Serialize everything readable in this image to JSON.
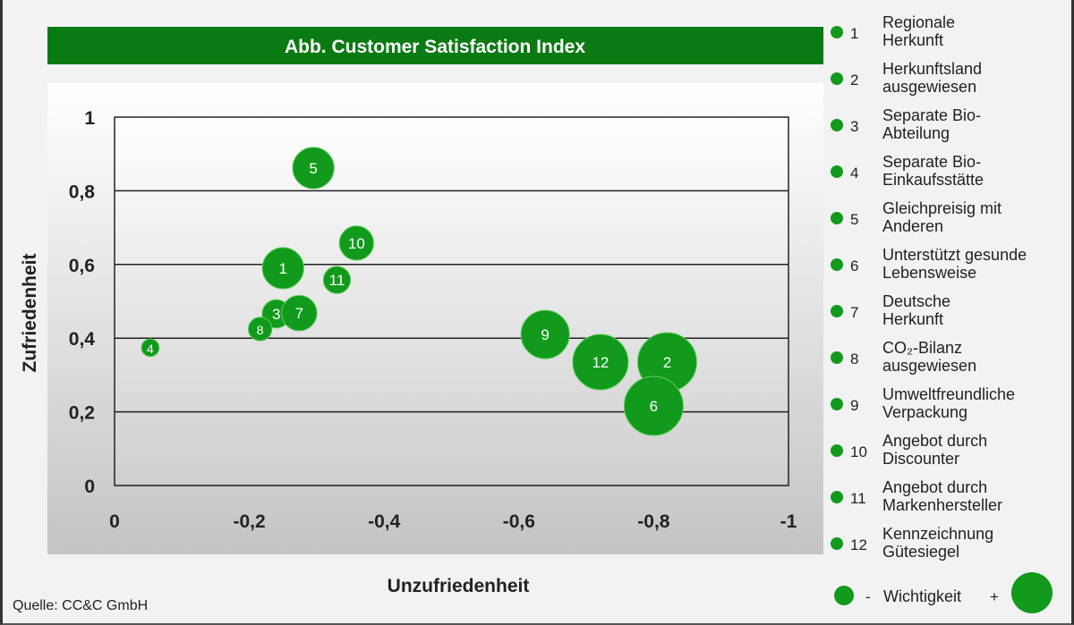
{
  "colors": {
    "accent": "#0b8a16",
    "title_bar": "#0a7a12",
    "bubble": "#129a1c"
  },
  "source": "Quelle: CC&C GmbH",
  "legend": {
    "items": [
      {
        "n": "1",
        "line1": "Regionale",
        "line2": "Herkunft"
      },
      {
        "n": "2",
        "line1": "Herkunftsland",
        "line2": "ausgewiesen"
      },
      {
        "n": "3",
        "line1": "Separate Bio-",
        "line2": "Abteilung"
      },
      {
        "n": "4",
        "line1": "Separate Bio-",
        "line2": "Einkaufsstätte"
      },
      {
        "n": "5",
        "line1": "Gleichpreisig mit",
        "line2": "Anderen"
      },
      {
        "n": "6",
        "line1": "Unterstützt gesunde",
        "line2": "Lebensweise"
      },
      {
        "n": "7",
        "line1": "Deutsche",
        "line2": "Herkunft"
      },
      {
        "n": "8",
        "line1": "CO₂-Bilanz",
        "line2": "ausgewiesen"
      },
      {
        "n": "9",
        "line1": "Umweltfreundliche",
        "line2": "Verpackung"
      },
      {
        "n": "10",
        "line1": "Angebot durch",
        "line2": "Discounter"
      },
      {
        "n": "11",
        "line1": "Angebot durch",
        "line2": "Markenhersteller"
      },
      {
        "n": "12",
        "line1": "Kennzeichnung",
        "line2": "Gütesiegel"
      }
    ],
    "size_legend": {
      "minus": "-",
      "label": "Wichtigkeit",
      "plus": "+"
    }
  },
  "chart_data": {
    "type": "bubble",
    "title": "Abb. Customer Satisfaction Index",
    "xlabel": "Unzufriedenheit",
    "ylabel": "Zufriedenheit",
    "xlim": [
      0,
      -1
    ],
    "ylim": [
      0,
      1
    ],
    "xticks": [
      "0",
      "-0,2",
      "-0,4",
      "-0,6",
      "-0,8",
      "-1"
    ],
    "yticks": [
      "0",
      "0,2",
      "0,4",
      "0,6",
      "0,8",
      "1"
    ],
    "grid": "horizontal",
    "legend_position": "right",
    "points": [
      {
        "label": "1",
        "x": -0.25,
        "y": 0.59,
        "importance": 0.7
      },
      {
        "label": "2",
        "x": -0.82,
        "y": 0.335,
        "importance": 1.0
      },
      {
        "label": "3",
        "x": -0.24,
        "y": 0.466,
        "importance": 0.48
      },
      {
        "label": "4",
        "x": -0.053,
        "y": 0.374,
        "importance": 0.3
      },
      {
        "label": "5",
        "x": -0.295,
        "y": 0.862,
        "importance": 0.7
      },
      {
        "label": "6",
        "x": -0.8,
        "y": 0.216,
        "importance": 1.0
      },
      {
        "label": "7",
        "x": -0.274,
        "y": 0.468,
        "importance": 0.6
      },
      {
        "label": "8",
        "x": -0.216,
        "y": 0.425,
        "importance": 0.4
      },
      {
        "label": "9",
        "x": -0.639,
        "y": 0.41,
        "importance": 0.82
      },
      {
        "label": "10",
        "x": -0.359,
        "y": 0.658,
        "importance": 0.58
      },
      {
        "label": "11",
        "x": -0.33,
        "y": 0.558,
        "importance": 0.46
      },
      {
        "label": "12",
        "x": -0.721,
        "y": 0.335,
        "importance": 0.94
      }
    ]
  }
}
